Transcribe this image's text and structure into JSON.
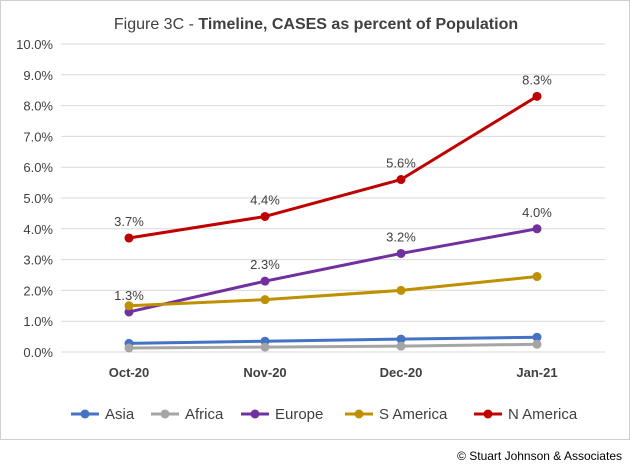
{
  "chart_data": {
    "type": "line",
    "title_prefix": "Figure 3C - ",
    "title_main": "Timeline, CASES as percent of Population",
    "categories": [
      "Oct-20",
      "Nov-20",
      "Dec-20",
      "Jan-21"
    ],
    "ylim": [
      0,
      10
    ],
    "yticks": [
      "0.0%",
      "1.0%",
      "2.0%",
      "3.0%",
      "4.0%",
      "5.0%",
      "6.0%",
      "7.0%",
      "8.0%",
      "9.0%",
      "10.0%"
    ],
    "grid": true,
    "legend_position": "bottom",
    "series": [
      {
        "name": "Asia",
        "color": "#4472C4",
        "values": [
          0.28,
          0.35,
          0.42,
          0.48
        ],
        "labels": []
      },
      {
        "name": "Africa",
        "color": "#A5A5A5",
        "values": [
          0.13,
          0.16,
          0.19,
          0.25
        ],
        "labels": []
      },
      {
        "name": "Europe",
        "color": "#7030A0",
        "values": [
          1.3,
          2.3,
          3.2,
          4.0
        ],
        "labels": [
          "1.3%",
          "2.3%",
          "3.2%",
          "4.0%"
        ]
      },
      {
        "name": "S America",
        "color": "#BF9000",
        "values": [
          1.5,
          1.7,
          2.0,
          2.45
        ],
        "labels": []
      },
      {
        "name": "N America",
        "color": "#C00000",
        "values": [
          3.7,
          4.4,
          5.6,
          8.3
        ],
        "labels": [
          "3.7%",
          "4.4%",
          "5.6%",
          "8.3%"
        ]
      }
    ]
  },
  "footer": {
    "copyright": "© Stuart Johnson & Associates"
  }
}
